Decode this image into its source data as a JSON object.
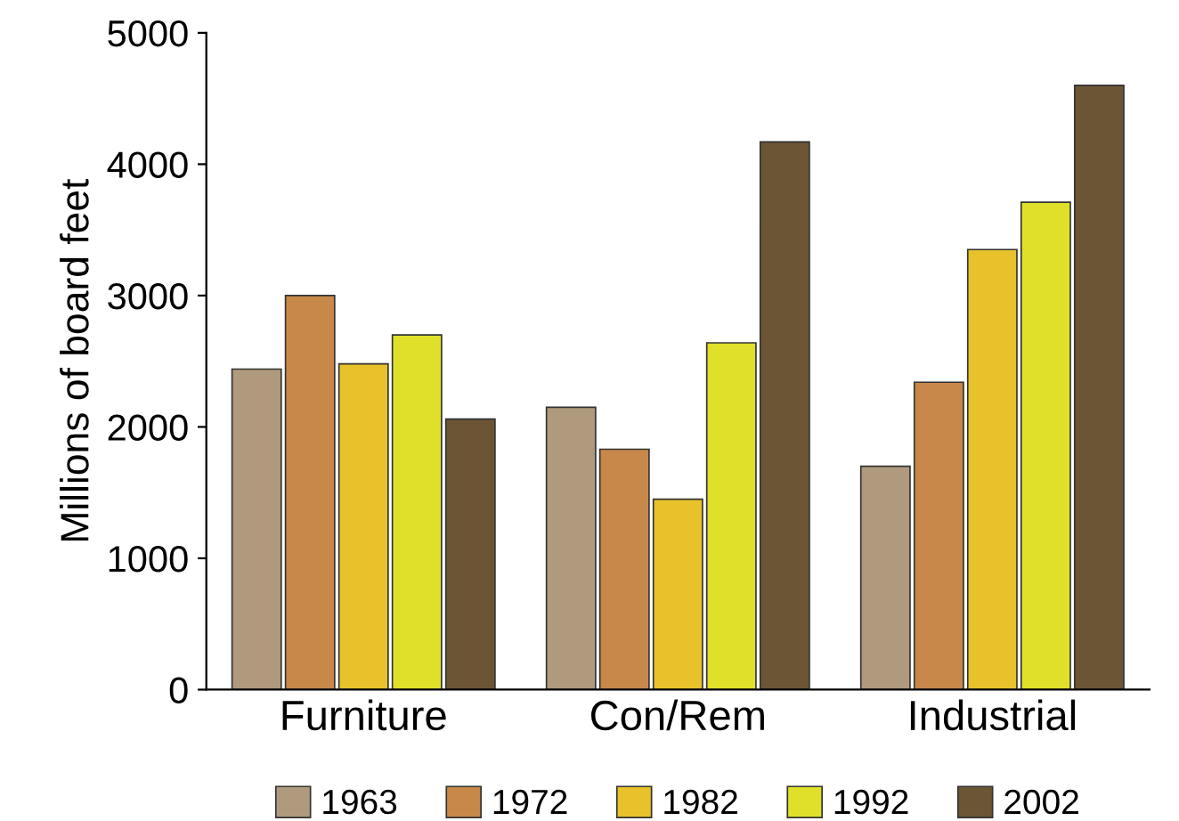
{
  "chart_data": {
    "type": "bar",
    "ylabel": "Millions of board feet",
    "categories": [
      "Furniture",
      "Con/Rem",
      "Industrial"
    ],
    "series": [
      {
        "name": "1963",
        "color": "#b09a7e",
        "values": [
          2440,
          2150,
          1700
        ]
      },
      {
        "name": "1972",
        "color": "#c8884a",
        "values": [
          3000,
          1830,
          2340
        ]
      },
      {
        "name": "1982",
        "color": "#e8c22a",
        "values": [
          2480,
          1450,
          3350
        ]
      },
      {
        "name": "1992",
        "color": "#e0e02a",
        "values": [
          2700,
          2640,
          3710
        ]
      },
      {
        "name": "2002",
        "color": "#6b5535",
        "values": [
          2060,
          4170,
          4600
        ]
      }
    ],
    "ylim": [
      0,
      5000
    ],
    "yticks": [
      0,
      1000,
      2000,
      3000,
      4000,
      5000
    ],
    "grid": false,
    "legend": "bottom"
  }
}
